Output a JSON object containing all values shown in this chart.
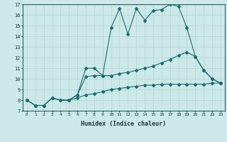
{
  "xlabel": "Humidex (Indice chaleur)",
  "bg_color": "#cce8e8",
  "grid_color": "#b8d8d8",
  "line_color": "#1a6e6e",
  "xlim": [
    -0.5,
    23.5
  ],
  "ylim": [
    7,
    17
  ],
  "xticks": [
    0,
    1,
    2,
    3,
    4,
    5,
    6,
    7,
    8,
    9,
    10,
    11,
    12,
    13,
    14,
    15,
    16,
    17,
    18,
    19,
    20,
    21,
    22,
    23
  ],
  "yticks": [
    7,
    8,
    9,
    10,
    11,
    12,
    13,
    14,
    15,
    16,
    17
  ],
  "line1_x": [
    0,
    1,
    2,
    3,
    4,
    5,
    6,
    7,
    8,
    9,
    10,
    11,
    12,
    13,
    14,
    15,
    16,
    17,
    18,
    19,
    20,
    21,
    22,
    23
  ],
  "line1_y": [
    8.0,
    7.5,
    7.5,
    8.2,
    8.0,
    8.0,
    8.5,
    11.0,
    11.0,
    10.3,
    14.8,
    16.6,
    14.2,
    16.6,
    15.5,
    16.4,
    16.5,
    17.0,
    16.8,
    14.8,
    12.1,
    10.8,
    10.0,
    9.6
  ],
  "line2_x": [
    0,
    1,
    2,
    3,
    4,
    5,
    6,
    7,
    8,
    9,
    10,
    11,
    12,
    13,
    14,
    15,
    16,
    17,
    18,
    19,
    20,
    21,
    22,
    23
  ],
  "line2_y": [
    8.0,
    7.5,
    7.5,
    8.2,
    8.0,
    8.0,
    8.5,
    10.2,
    10.3,
    10.3,
    10.3,
    10.5,
    10.6,
    10.8,
    11.0,
    11.2,
    11.5,
    11.8,
    12.2,
    12.5,
    12.1,
    10.8,
    10.0,
    9.6
  ],
  "line3_x": [
    0,
    1,
    2,
    3,
    4,
    5,
    6,
    7,
    8,
    9,
    10,
    11,
    12,
    13,
    14,
    15,
    16,
    17,
    18,
    19,
    20,
    21,
    22,
    23
  ],
  "line3_y": [
    8.0,
    7.5,
    7.5,
    8.2,
    8.0,
    8.0,
    8.2,
    8.5,
    8.6,
    8.8,
    9.0,
    9.1,
    9.2,
    9.3,
    9.4,
    9.4,
    9.5,
    9.5,
    9.5,
    9.5,
    9.5,
    9.5,
    9.6,
    9.6
  ]
}
